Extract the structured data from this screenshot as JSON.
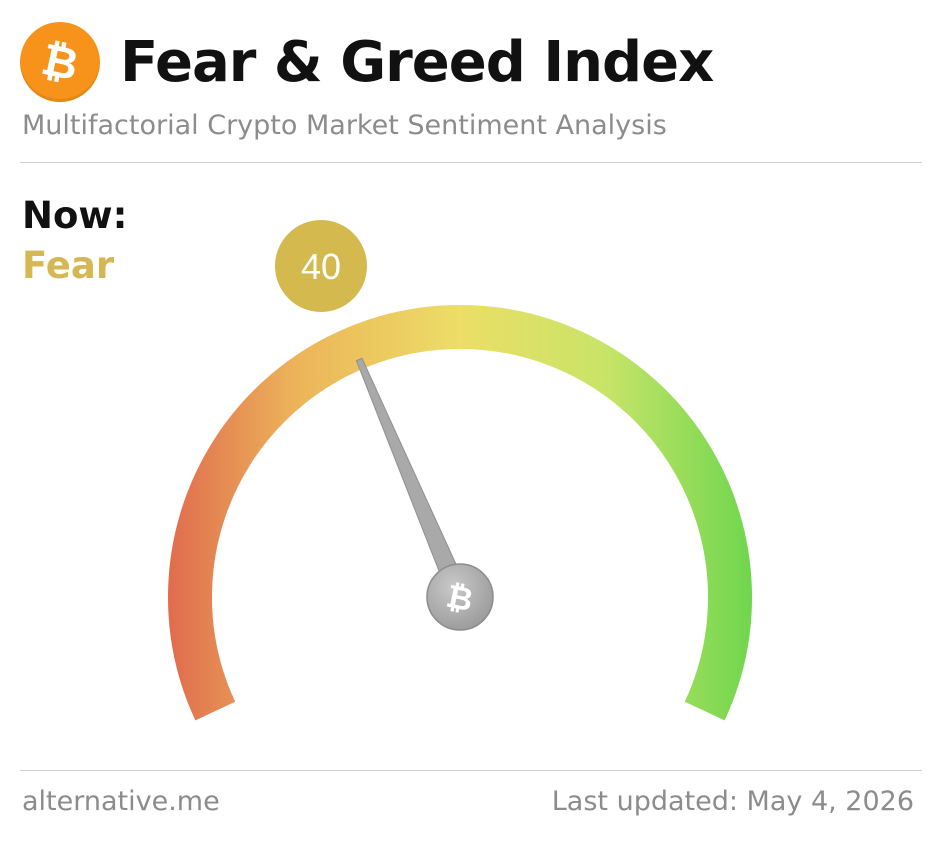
{
  "header": {
    "logo_symbol": "₿",
    "logo_icon": "bitcoin-icon",
    "logo_color": "#f7931a",
    "title": "Fear & Greed Index",
    "subtitle": "Multifactorial Crypto Market Sentiment Analysis"
  },
  "now": {
    "label": "Now:",
    "classification": "Fear",
    "value": 40,
    "value_text": "40",
    "accent_color": "#d4b94f"
  },
  "gauge": {
    "min": 0,
    "max": 100,
    "needle_icon": "bitcoin-icon",
    "hub_symbol": "₿",
    "gradient_colors": [
      "#e06c4e",
      "#ecb45a",
      "#ecde66",
      "#c8e468",
      "#6fd64e"
    ]
  },
  "footer": {
    "source": "alternative.me",
    "last_updated": "Last updated: May 4, 2026"
  }
}
